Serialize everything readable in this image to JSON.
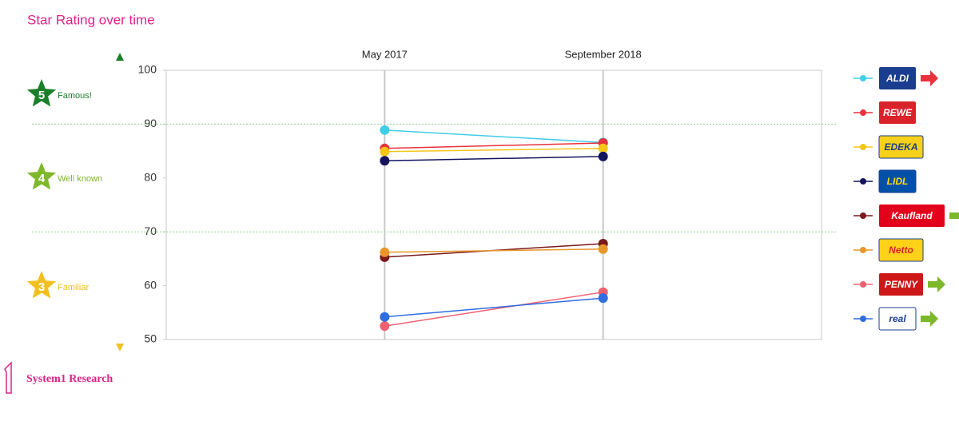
{
  "chart_data": {
    "type": "line",
    "title": "Star Rating over time",
    "categories": [
      "May 2017",
      "September 2018"
    ],
    "ylim": [
      50,
      100
    ],
    "yticks": [
      50,
      60,
      70,
      80,
      90,
      100
    ],
    "grid": true,
    "thresholds": [
      90,
      70
    ],
    "threshold_color": "#8fd18f",
    "ratings": [
      {
        "stars": 5,
        "label": "Famous!",
        "color": "#1b7f2a"
      },
      {
        "stars": 4,
        "label": "Well known",
        "color": "#7fb82a"
      },
      {
        "stars": 3,
        "label": "Familiar",
        "color": "#f0c020"
      }
    ],
    "series": [
      {
        "name": "ALDI",
        "color": "#3fcde8",
        "values": [
          88.9,
          86.6
        ],
        "logo": {
          "fill": "#1a3d8f",
          "text": "#ffffff"
        },
        "arrow_color": "#e8323c"
      },
      {
        "name": "REWE",
        "color": "#e8323c",
        "values": [
          85.5,
          86.5
        ],
        "logo": {
          "fill": "#d9232a",
          "text": "#ffffff"
        }
      },
      {
        "name": "EDEKA",
        "color": "#f5c518",
        "values": [
          84.9,
          85.5
        ],
        "logo": {
          "fill": "#f8d11a",
          "text": "#1a3d8f"
        }
      },
      {
        "name": "LIDL",
        "color": "#14145e",
        "values": [
          83.2,
          84.0
        ],
        "logo": {
          "fill": "#0050aa",
          "text": "#ffe000"
        }
      },
      {
        "name": "Kaufland",
        "color": "#7a1a1a",
        "values": [
          65.3,
          67.8
        ],
        "logo": {
          "fill": "#e3001b",
          "text": "#ffffff"
        },
        "arrow_color": "#7cb82a"
      },
      {
        "name": "Netto",
        "color": "#e8962a",
        "values": [
          66.2,
          66.8
        ],
        "logo": {
          "fill": "#ffd21a",
          "text": "#d9232a"
        }
      },
      {
        "name": "PENNY",
        "color": "#f06070",
        "values": [
          52.5,
          58.8
        ],
        "logo": {
          "fill": "#cd1719",
          "text": "#ffffff"
        },
        "arrow_color": "#7cb82a"
      },
      {
        "name": "real",
        "color": "#2f6de0",
        "values": [
          54.2,
          57.7
        ],
        "logo": {
          "fill": "#ffffff",
          "text": "#1a3d8f"
        },
        "arrow_color": "#7cb82a"
      }
    ],
    "footer": "System1 Research"
  }
}
